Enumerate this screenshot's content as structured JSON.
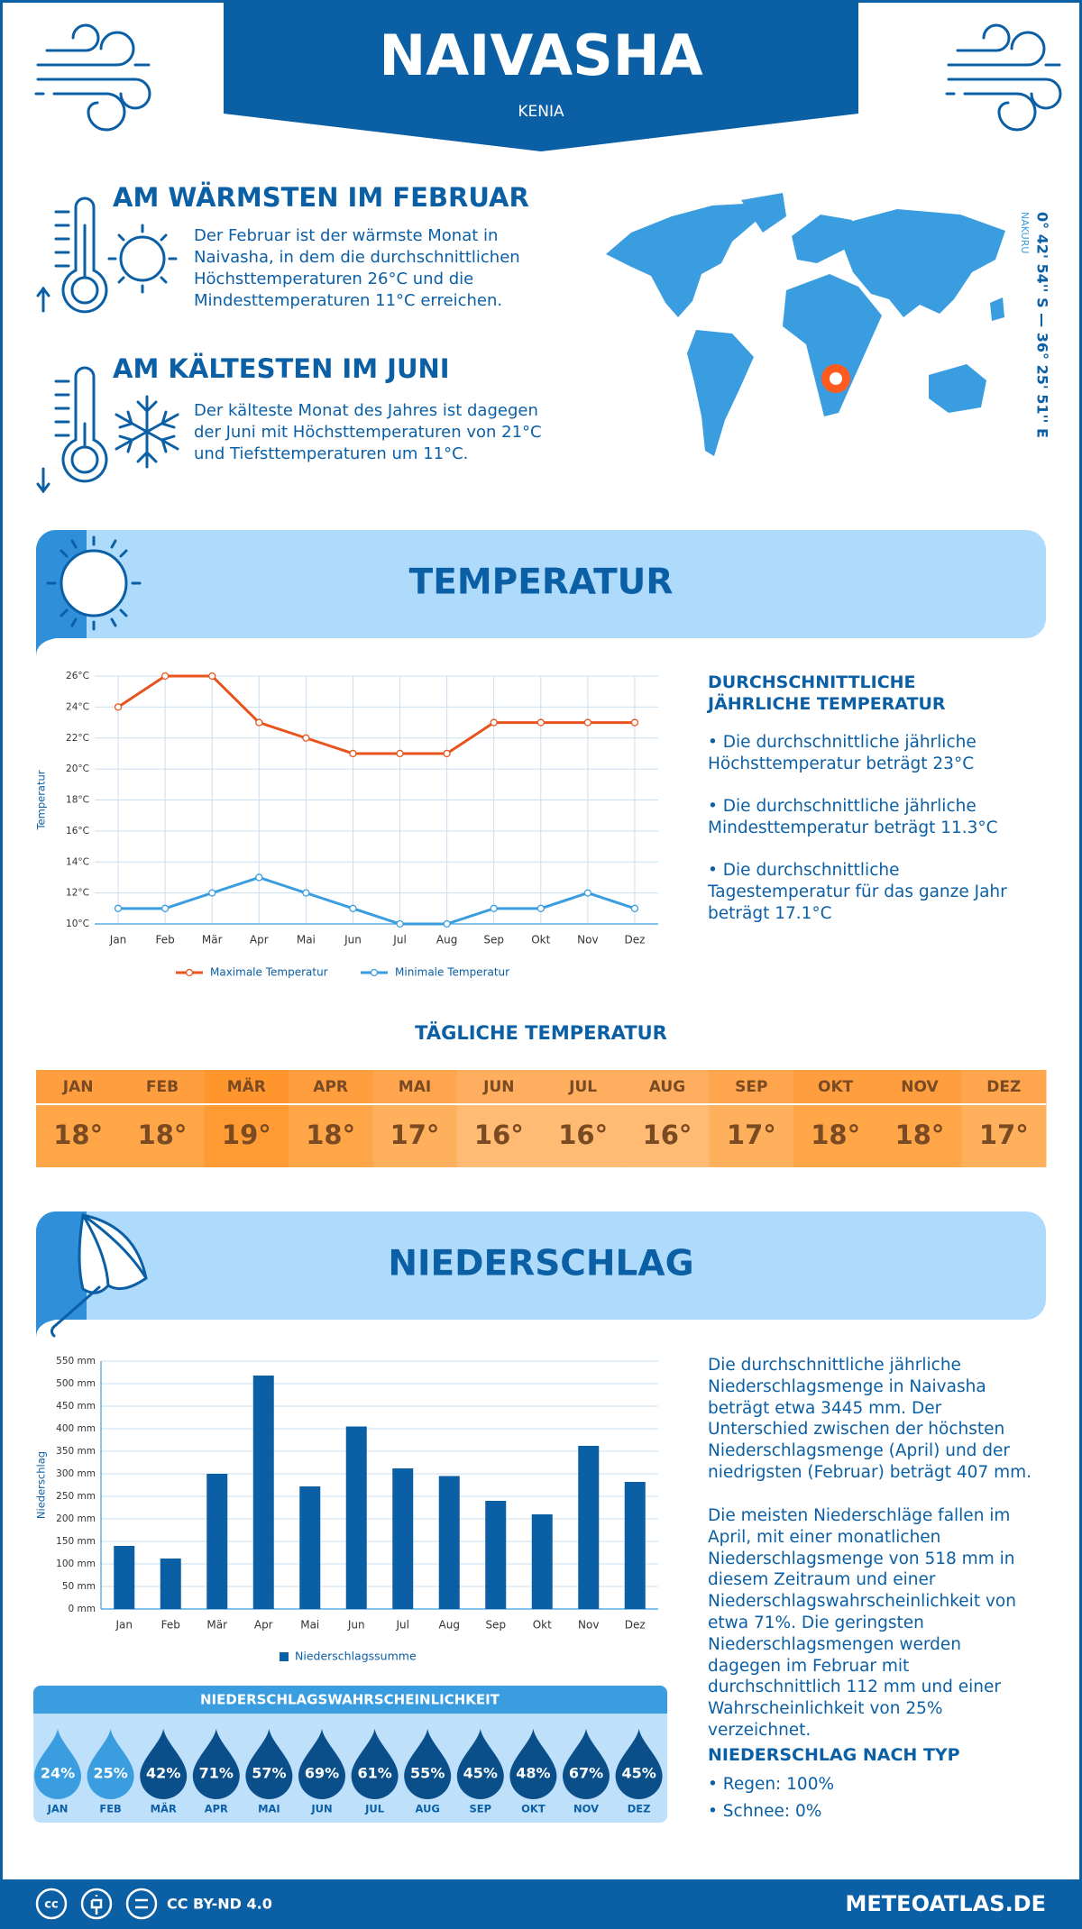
{
  "header": {
    "title": "NAIVASHA",
    "subtitle": "KENIA"
  },
  "location": {
    "region": "NAKURU",
    "coordinates": "0° 42' 54'' S — 36° 25' 51'' E"
  },
  "highlights": [
    {
      "title": "AM WÄRMSTEN IM FEBRUAR",
      "text": "Der Februar ist der wärmste Monat in Naivasha, in dem die durchschnittlichen Höchsttemperaturen 26°C und die Mindesttemperaturen 11°C erreichen."
    },
    {
      "title": "AM KÄLTESTEN IM JUNI",
      "text": "Der kälteste Monat des Jahres ist dagegen der Juni mit Höchsttemperaturen von 21°C und Tiefsttemperaturen um 11°C."
    }
  ],
  "temperature_section": {
    "title": "TEMPERATUR",
    "summary_title": "DURCHSCHNITTLICHE JÄHRLICHE TEMPERATUR",
    "summary_items": [
      "• Die durchschnittliche jährliche Höchsttemperatur beträgt 23°C",
      "• Die durchschnittliche jährliche Mindesttemperatur beträgt 11.3°C",
      "• Die durchschnittliche Tagestemperatur für das ganze Jahr beträgt 17.1°C"
    ]
  },
  "chart_data": [
    {
      "type": "line",
      "y_label": "Temperatur",
      "categories": [
        "Jan",
        "Feb",
        "Mär",
        "Apr",
        "Mai",
        "Jun",
        "Jul",
        "Aug",
        "Sep",
        "Okt",
        "Nov",
        "Dez"
      ],
      "series": [
        {
          "name": "Maximale Temperatur",
          "color": "#e8541e",
          "values": [
            24,
            26,
            26,
            23,
            22,
            21,
            21,
            21,
            23,
            23,
            23,
            23
          ]
        },
        {
          "name": "Minimale Temperatur",
          "color": "#3a9de0",
          "values": [
            11,
            11,
            12,
            13,
            12,
            11,
            10,
            10,
            11,
            11,
            12,
            11
          ]
        }
      ],
      "ylim": [
        10,
        26
      ],
      "yticks": [
        {
          "value": 10,
          "label": "10°C"
        },
        {
          "value": 12,
          "label": "12°C"
        },
        {
          "value": 14,
          "label": "14°C"
        },
        {
          "value": 16,
          "label": "16°C"
        },
        {
          "value": 18,
          "label": "18°C"
        },
        {
          "value": 20,
          "label": "20°C"
        },
        {
          "value": 22,
          "label": "22°C"
        },
        {
          "value": 24,
          "label": "24°C"
        },
        {
          "value": 26,
          "label": "26°C"
        }
      ],
      "grid": true
    },
    {
      "type": "bar",
      "y_label": "Niederschlag",
      "categories": [
        "Jan",
        "Feb",
        "Mär",
        "Apr",
        "Mai",
        "Jun",
        "Jul",
        "Aug",
        "Sep",
        "Okt",
        "Nov",
        "Dez"
      ],
      "series": [
        {
          "name": "Niederschlagssumme",
          "color": "#0b5fa5",
          "values": [
            140,
            112,
            300,
            518,
            272,
            405,
            312,
            295,
            240,
            210,
            362,
            282
          ]
        }
      ],
      "ylim": [
        0,
        550
      ],
      "yticks": [
        {
          "value": 0,
          "label": "0 mm"
        },
        {
          "value": 50,
          "label": "50 mm"
        },
        {
          "value": 100,
          "label": "100 mm"
        },
        {
          "value": 150,
          "label": "150 mm"
        },
        {
          "value": 200,
          "label": "200 mm"
        },
        {
          "value": 250,
          "label": "250 mm"
        },
        {
          "value": 300,
          "label": "300 mm"
        },
        {
          "value": 350,
          "label": "350 mm"
        },
        {
          "value": 400,
          "label": "400 mm"
        },
        {
          "value": 450,
          "label": "450 mm"
        },
        {
          "value": 500,
          "label": "500 mm"
        },
        {
          "value": 550,
          "label": "550 mm"
        }
      ],
      "grid": true
    }
  ],
  "daily_temperature": {
    "title": "TÄGLICHE TEMPERATUR",
    "months": [
      "JAN",
      "FEB",
      "MÄR",
      "APR",
      "MAI",
      "JUN",
      "JUL",
      "AUG",
      "SEP",
      "OKT",
      "NOV",
      "DEZ"
    ],
    "values": [
      18,
      18,
      19,
      18,
      17,
      16,
      16,
      16,
      17,
      18,
      18,
      17
    ],
    "value_labels": [
      "18°",
      "18°",
      "19°",
      "18°",
      "17°",
      "16°",
      "16°",
      "16°",
      "17°",
      "18°",
      "18°",
      "17°"
    ]
  },
  "precipitation_section": {
    "title": "NIEDERSCHLAG",
    "paragraphs": [
      "Die durchschnittliche jährliche Niederschlagsmenge in Naivasha beträgt etwa 3445 mm. Der Unterschied zwischen der höchsten Niederschlagsmenge (April) und der niedrigsten (Februar) beträgt 407 mm.",
      "Die meisten Niederschläge fallen im April, mit einer monatlichen Niederschlagsmenge von 518 mm in diesem Zeitraum und einer Niederschlagswahrscheinlichkeit von etwa 71%. Die geringsten Niederschlagsmengen werden dagegen im Februar mit durchschnittlich 112 mm und einer Wahrscheinlichkeit von 25% verzeichnet."
    ],
    "type_title": "NIEDERSCHLAG NACH TYP",
    "type_items": [
      "• Regen: 100%",
      "• Schnee: 0%"
    ]
  },
  "precipitation_probability": {
    "title": "NIEDERSCHLAGSWAHRSCHEINLICHKEIT",
    "months": [
      "JAN",
      "FEB",
      "MÄR",
      "APR",
      "MAI",
      "JUN",
      "JUL",
      "AUG",
      "SEP",
      "OKT",
      "NOV",
      "DEZ"
    ],
    "values": [
      24,
      25,
      42,
      71,
      57,
      69,
      61,
      55,
      45,
      48,
      67,
      45
    ],
    "value_labels": [
      "24%",
      "25%",
      "42%",
      "71%",
      "57%",
      "69%",
      "61%",
      "55%",
      "45%",
      "48%",
      "67%",
      "45%"
    ]
  },
  "footer": {
    "license": "CC BY-ND 4.0",
    "site": "METEOATLAS.DE"
  }
}
